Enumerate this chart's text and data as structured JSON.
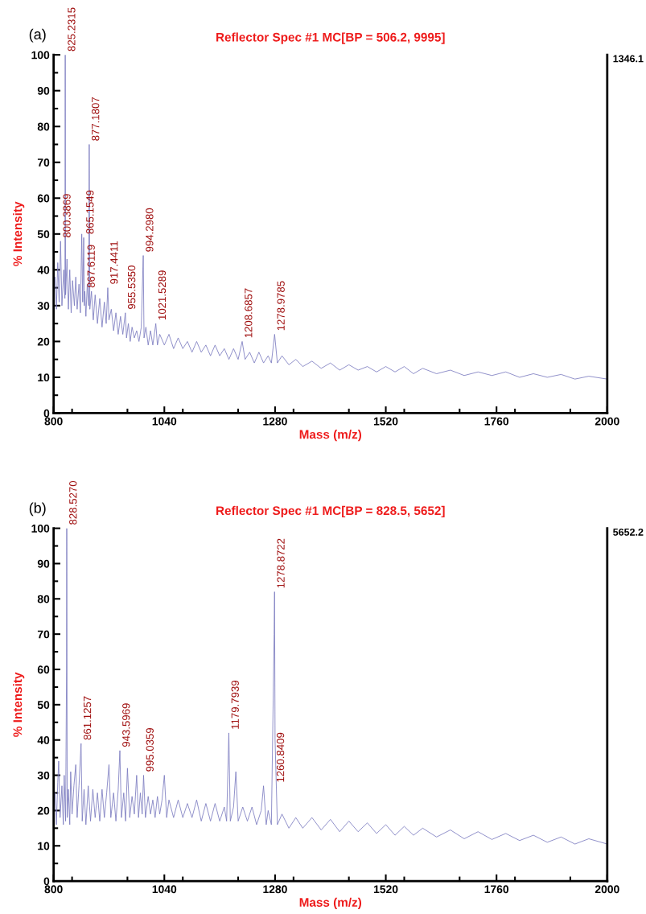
{
  "chart_data": [
    {
      "type": "line",
      "title": "Reflector Spec #1 MC[BP = 506.2, 9995]",
      "xlabel": "Mass (m/z)",
      "ylabel": "% Intensity",
      "xlim": [
        800,
        2000
      ],
      "xticks": [
        800,
        1040,
        1280,
        1520,
        1760,
        2000
      ],
      "ylim": [
        0,
        100
      ],
      "yticks": [
        0,
        10,
        20,
        30,
        40,
        50,
        60,
        70,
        80,
        90,
        100
      ],
      "grid": false,
      "legend": false,
      "series": [
        {
          "color": "#7b7bbf",
          "x": [
            800,
            803,
            806,
            809,
            812,
            815,
            818,
            822,
            824.5,
            825.2,
            826,
            829,
            832,
            835,
            838,
            841,
            845,
            848,
            851,
            855,
            858,
            861,
            863,
            865.2,
            866.5,
            867.6,
            870,
            873,
            876,
            877.2,
            878.5,
            882,
            886,
            890,
            895,
            900,
            905,
            910,
            914,
            917.4,
            920,
            925,
            930,
            935,
            940,
            945,
            950,
            955.5,
            958,
            962,
            966,
            970,
            975,
            980,
            985,
            990,
            994.3,
            996,
            1000,
            1005,
            1010,
            1015,
            1021.5,
            1025,
            1030,
            1040,
            1050,
            1060,
            1070,
            1080,
            1090,
            1100,
            1110,
            1120,
            1130,
            1140,
            1150,
            1160,
            1170,
            1180,
            1190,
            1200,
            1208.7,
            1215,
            1225,
            1235,
            1245,
            1255,
            1265,
            1272,
            1279,
            1285,
            1295,
            1310,
            1325,
            1340,
            1360,
            1380,
            1400,
            1420,
            1440,
            1460,
            1480,
            1500,
            1520,
            1540,
            1560,
            1580,
            1600,
            1630,
            1660,
            1690,
            1720,
            1750,
            1780,
            1810,
            1840,
            1870,
            1900,
            1930,
            1960,
            2000
          ],
          "values": [
            30,
            38,
            29,
            42,
            31,
            48,
            30,
            40,
            32,
            100,
            33,
            43,
            29,
            40,
            28,
            37,
            30,
            38,
            29,
            36,
            28,
            50,
            31,
            49,
            30,
            34,
            27,
            36,
            30,
            75,
            29,
            34,
            26,
            33,
            25,
            32,
            24,
            31,
            25,
            35,
            26,
            29,
            23,
            28,
            22,
            27,
            22,
            28,
            21,
            25,
            20,
            24,
            21,
            23,
            20,
            24,
            44,
            21,
            24,
            19,
            23,
            19,
            25,
            19,
            22,
            19,
            22,
            18,
            21,
            18,
            20,
            17,
            20,
            17,
            19,
            16,
            19,
            16,
            18,
            15,
            18,
            15,
            20,
            15,
            17,
            14,
            17,
            14,
            16,
            14,
            22,
            14,
            16,
            13.5,
            15,
            13,
            14.5,
            12.5,
            14,
            12,
            13.5,
            12,
            13,
            11.5,
            13,
            11.5,
            13,
            11,
            12.5,
            11,
            12,
            10.5,
            11.5,
            10.5,
            11.5,
            10,
            11,
            10,
            10.8,
            9.5,
            10.3,
            9.5
          ]
        }
      ],
      "annotations": [
        "(a)",
        "1346.1",
        {
          "text": "825.2315",
          "x": 825.2,
          "y": 100
        },
        {
          "text": "877.1807",
          "x": 877.2,
          "y": 75
        },
        {
          "text": "800.3869",
          "x": 815,
          "y": 48
        },
        {
          "text": "865.1549",
          "x": 865.2,
          "y": 49
        },
        {
          "text": "867.6119",
          "x": 867.6,
          "y": 34
        },
        {
          "text": "917.4411",
          "x": 917.4,
          "y": 35
        },
        {
          "text": "955.5350",
          "x": 955.5,
          "y": 28
        },
        {
          "text": "994.2980",
          "x": 994.3,
          "y": 44
        },
        {
          "text": "1021.5289",
          "x": 1021.5,
          "y": 25
        },
        {
          "text": "1208.6857",
          "x": 1208.7,
          "y": 20
        },
        {
          "text": "1278.9785",
          "x": 1279,
          "y": 22
        }
      ]
    },
    {
      "type": "line",
      "title": "Reflector Spec #1 MC[BP = 828.5, 5652]",
      "xlabel": "Mass (m/z)",
      "ylabel": "% Intensity",
      "xlim": [
        800,
        2000
      ],
      "xticks": [
        800,
        1040,
        1280,
        1520,
        1760,
        2000
      ],
      "ylim": [
        0,
        100
      ],
      "yticks": [
        0,
        10,
        20,
        30,
        40,
        50,
        60,
        70,
        80,
        90,
        100
      ],
      "grid": false,
      "legend": false,
      "series": [
        {
          "color": "#7b7bbf",
          "x": [
            800,
            803,
            806,
            809,
            811,
            814,
            818,
            821,
            823,
            826,
            828,
            828.5,
            829.5,
            832,
            835,
            837,
            840,
            844,
            848,
            851,
            855,
            859.5,
            862,
            866,
            870,
            875,
            880,
            885,
            890,
            895,
            900,
            905,
            910,
            915,
            920,
            924,
            930,
            935,
            940,
            943.6,
            947,
            952,
            956,
            960,
            965,
            970,
            975,
            980,
            984,
            988,
            992,
            995,
            999,
            1005,
            1010,
            1015,
            1020,
            1025,
            1030,
            1035,
            1040,
            1045,
            1050,
            1060,
            1070,
            1080,
            1090,
            1100,
            1110,
            1120,
            1130,
            1140,
            1150,
            1160,
            1170,
            1175,
            1179.8,
            1183,
            1190,
            1195,
            1200,
            1210,
            1220,
            1230,
            1240,
            1250,
            1255,
            1260.8,
            1265,
            1272,
            1278,
            1278.9,
            1280,
            1285,
            1295,
            1310,
            1325,
            1340,
            1360,
            1380,
            1400,
            1420,
            1440,
            1460,
            1480,
            1500,
            1520,
            1540,
            1560,
            1580,
            1600,
            1630,
            1660,
            1690,
            1720,
            1750,
            1780,
            1810,
            1840,
            1870,
            1900,
            1930,
            1960,
            2000
          ],
          "values": [
            17,
            25,
            16,
            28,
            34,
            18,
            27,
            16,
            30,
            17,
            60,
            100,
            18,
            26,
            16,
            31,
            19,
            27,
            33,
            18,
            27,
            39,
            17,
            26,
            16,
            27,
            17,
            26,
            18,
            25,
            17,
            26,
            18,
            25,
            33,
            18,
            25,
            17,
            26,
            37,
            18,
            25,
            17,
            32,
            18,
            24,
            19,
            30,
            18,
            25,
            19,
            30,
            18,
            24,
            19,
            23,
            18,
            24,
            19,
            23,
            30,
            18,
            23,
            18,
            23,
            18,
            22,
            18,
            23,
            17,
            22,
            17,
            22,
            17,
            21,
            17,
            42,
            17,
            21,
            31,
            17,
            21,
            17,
            21,
            16,
            20,
            27,
            16,
            20,
            16,
            70,
            82,
            40,
            16,
            19,
            15,
            18,
            15,
            18,
            14.5,
            17.5,
            14,
            17,
            14,
            16.5,
            13.5,
            16,
            13,
            15.5,
            13,
            15,
            12.5,
            14.5,
            12,
            14,
            11.8,
            13.5,
            11.5,
            13,
            11,
            12.5,
            10.5,
            12,
            10.5
          ]
        }
      ],
      "annotations": [
        "(b)",
        "5652.2",
        {
          "text": "828.5270",
          "x": 828.5,
          "y": 100
        },
        {
          "text": "861.1257",
          "x": 859.5,
          "y": 39
        },
        {
          "text": "943.5969",
          "x": 943.6,
          "y": 37
        },
        {
          "text": "995.0359",
          "x": 995,
          "y": 30
        },
        {
          "text": "1179.7939",
          "x": 1179.8,
          "y": 42
        },
        {
          "text": "1260.8409",
          "x": 1278,
          "y": 27
        },
        {
          "text": "1278.8722",
          "x": 1278.9,
          "y": 82
        }
      ]
    }
  ]
}
